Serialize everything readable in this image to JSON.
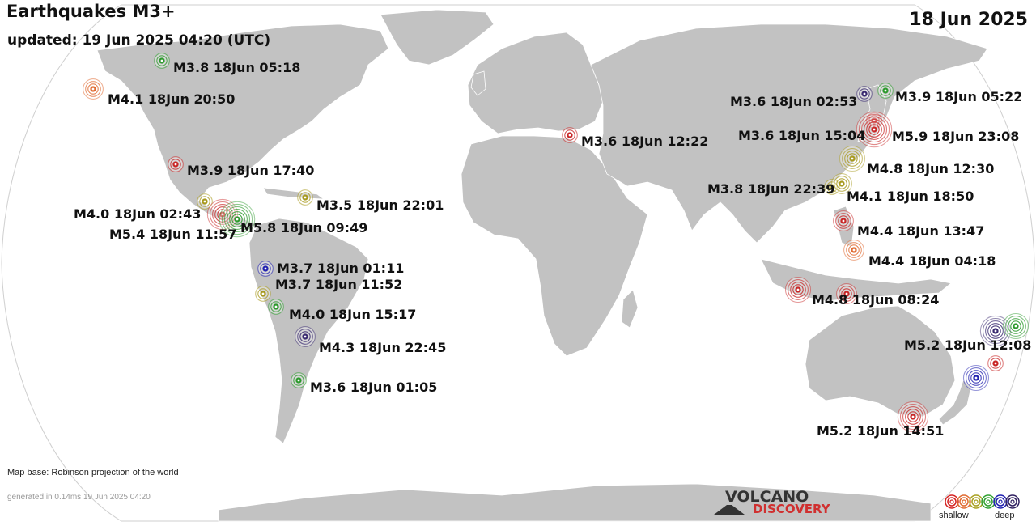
{
  "header": {
    "title": "Earthquakes M3+",
    "updated": "updated: 19 Jun 2025 04:20 (UTC)",
    "date": "18 Jun 2025"
  },
  "footer": {
    "map_base": "Map base: Robinson projection of the world",
    "generated": "generated in 0.14ms 19 Jun 2025 04:20",
    "logo_line1": "VOLCANO",
    "logo_line2": "DISCOVERY"
  },
  "legend": {
    "shallow_label": "shallow",
    "deep_label": "deep",
    "colors": [
      "#d42020",
      "#e06a30",
      "#a8a020",
      "#30a030",
      "#2020b0",
      "#302060"
    ]
  },
  "colors": {
    "land": "#c2c2c2",
    "ocean": "#ffffff",
    "coast": "#ffffff"
  },
  "quakes": [
    {
      "label": "M3.8 18Jun 05:18",
      "mag": 3.8,
      "depth": "green"
    },
    {
      "label": "M4.1 18Jun 20:50",
      "mag": 4.1,
      "depth": "orange"
    },
    {
      "label": "M3.9 18Jun 17:40",
      "mag": 3.9,
      "depth": "red"
    },
    {
      "label": "M3.5 18Jun 22:01",
      "mag": 3.5,
      "depth": "yellow"
    },
    {
      "label": "M4.0 18Jun 02:43",
      "mag": 4.0,
      "depth": "yellow"
    },
    {
      "label": "M5.4 18Jun 11:57",
      "mag": 5.4,
      "depth": "red"
    },
    {
      "label": "M5.8 18Jun 09:49",
      "mag": 5.8,
      "depth": "green"
    },
    {
      "label": "M3.7 18Jun 01:11",
      "mag": 3.7,
      "depth": "blue"
    },
    {
      "label": "M3.7 18Jun 11:52",
      "mag": 3.7,
      "depth": "yellow"
    },
    {
      "label": "M4.0 18Jun 15:17",
      "mag": 4.0,
      "depth": "green"
    },
    {
      "label": "M4.3 18Jun 22:45",
      "mag": 4.3,
      "depth": "deep"
    },
    {
      "label": "M3.6 18Jun 01:05",
      "mag": 3.6,
      "depth": "green"
    },
    {
      "label": "M3.6 18Jun 12:22",
      "mag": 3.6,
      "depth": "red"
    },
    {
      "label": "M3.6 18Jun 02:53",
      "mag": 3.6,
      "depth": "deep"
    },
    {
      "label": "M3.9 18Jun 05:22",
      "mag": 3.9,
      "depth": "green"
    },
    {
      "label": "M3.6 18Jun 15:04",
      "mag": 3.6,
      "depth": "red"
    },
    {
      "label": "M5.9 18Jun 23:08",
      "mag": 5.9,
      "depth": "red"
    },
    {
      "label": "M4.8 18Jun 12:30",
      "mag": 4.8,
      "depth": "yellow"
    },
    {
      "label": "M3.8 18Jun 22:39",
      "mag": 3.8,
      "depth": "yellow"
    },
    {
      "label": "M4.1 18Jun 18:50",
      "mag": 4.1,
      "depth": "yellow"
    },
    {
      "label": "M4.4 18Jun 13:47",
      "mag": 4.4,
      "depth": "red"
    },
    {
      "label": "M4.4 18Jun 04:18",
      "mag": 4.4,
      "depth": "orange"
    },
    {
      "label": "M4.8 18Jun 08:24",
      "mag": 4.8,
      "depth": "red"
    },
    {
      "label": "",
      "mag": 4.4,
      "depth": "red"
    },
    {
      "label": "M5.2 18Jun 12:08",
      "mag": 5.2,
      "depth": "deep"
    },
    {
      "label": "",
      "mag": 4.8,
      "depth": "green"
    },
    {
      "label": "",
      "mag": 3.9,
      "depth": "red"
    },
    {
      "label": "",
      "mag": 4.9,
      "depth": "blue"
    },
    {
      "label": "M5.2 18Jun 14:51",
      "mag": 5.2,
      "depth": "red"
    }
  ]
}
